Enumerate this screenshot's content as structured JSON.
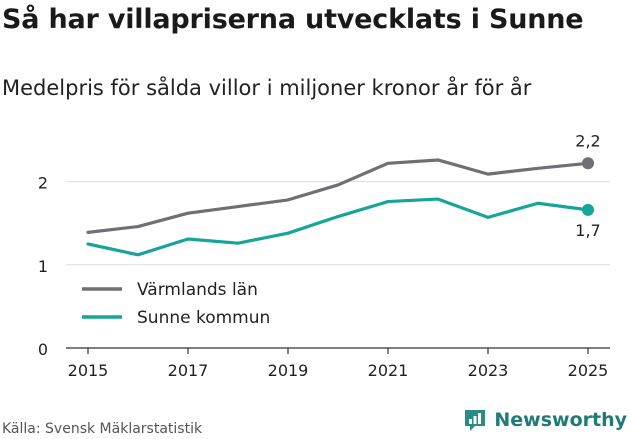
{
  "title": "Så har villapriserna utvecklats i Sunne",
  "subtitle": "Medelpris för sålda villor i miljoner kronor år för år",
  "source": "Källa: Svensk Mäklarstatistik",
  "logo_text": "Newsworthy",
  "logo_icon": "newsworthy-logo-icon",
  "colors": {
    "varmland": "#6f6f75",
    "sunne": "#17a599",
    "grid": "#dedede",
    "axis": "#333333"
  },
  "chart_data": {
    "type": "line",
    "x": [
      2015,
      2016,
      2017,
      2018,
      2019,
      2020,
      2021,
      2022,
      2023,
      2024,
      2025
    ],
    "series": [
      {
        "name": "Värmlands län",
        "values": [
          1.39,
          1.46,
          1.62,
          1.7,
          1.78,
          1.96,
          2.22,
          2.26,
          2.09,
          2.16,
          2.22
        ],
        "end_label": "2,2"
      },
      {
        "name": "Sunne kommun",
        "values": [
          1.25,
          1.12,
          1.31,
          1.26,
          1.38,
          1.58,
          1.76,
          1.79,
          1.57,
          1.74,
          1.66
        ],
        "end_label": "1,7"
      }
    ],
    "x_ticks": [
      2015,
      2017,
      2019,
      2021,
      2023,
      2025
    ],
    "x_tick_labels": [
      "2015",
      "2017",
      "2019",
      "2021",
      "2023",
      "2025"
    ],
    "y_ticks": [
      0,
      1,
      2
    ],
    "y_tick_labels": [
      "0",
      "1",
      "2"
    ],
    "xlim": [
      2015,
      2025
    ],
    "ylim": [
      0,
      2.5
    ],
    "grid": true,
    "legend": "left-inside"
  }
}
